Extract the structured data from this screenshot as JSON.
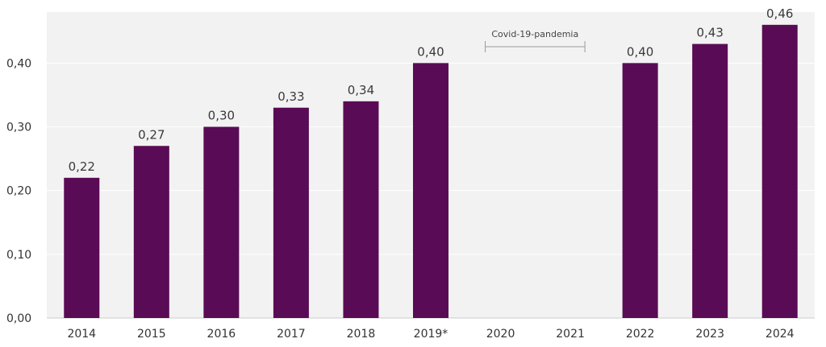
{
  "chart_data": {
    "type": "bar",
    "title": "",
    "xlabel": "",
    "ylabel": "",
    "categories": [
      "2014",
      "2015",
      "2016",
      "2017",
      "2018",
      "2019*",
      "2020",
      "2021",
      "2022",
      "2023",
      "2024"
    ],
    "values": [
      0.22,
      0.27,
      0.3,
      0.33,
      0.34,
      0.4,
      null,
      null,
      0.4,
      0.43,
      0.46
    ],
    "value_labels": [
      "0,22",
      "0,27",
      "0,30",
      "0,33",
      "0,34",
      "0,40",
      "",
      "",
      "0,40",
      "0,43",
      "0,46"
    ],
    "ylim": [
      0,
      0.48
    ],
    "yticks": [
      0.0,
      0.1,
      0.2,
      0.3,
      0.4
    ],
    "ytick_labels": [
      "0,00",
      "0,10",
      "0,20",
      "0,30",
      "0,40"
    ],
    "grid": true,
    "legend": "none",
    "annotations": [
      {
        "text": "Covid-19-pandemia",
        "from_category": "2020",
        "to_category": "2021"
      }
    ],
    "colors": {
      "bar": "#5a0b55",
      "plot_background": "#f2f2f2",
      "grid": "#ffffff",
      "axis": "#cccccc"
    }
  }
}
